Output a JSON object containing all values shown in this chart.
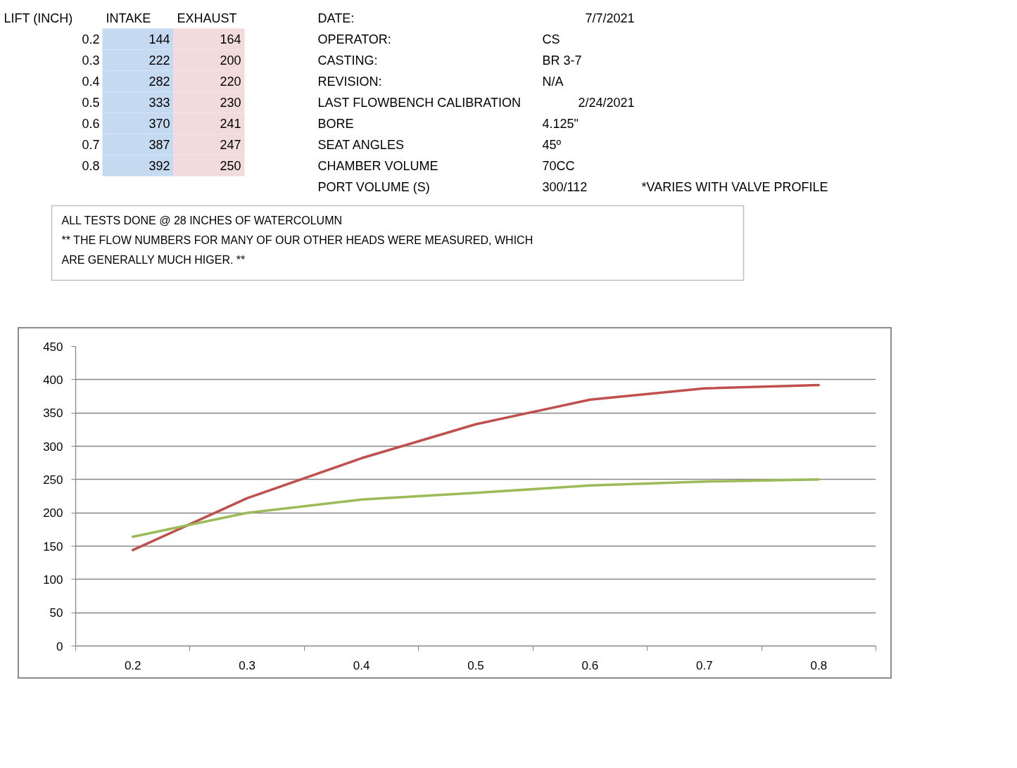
{
  "chart_data": [
    {
      "type": "heatmap",
      "ylabel": "LIFT (INCH)",
      "categories": [
        "INTAKE",
        "EXHAUST"
      ],
      "y_categories": [
        "0.2",
        "0.3",
        "0.4",
        "0.5",
        "0.6",
        "0.7",
        "0.8"
      ],
      "cells": [
        [
          144,
          164
        ],
        [
          222,
          200
        ],
        [
          282,
          220
        ],
        [
          333,
          230
        ],
        [
          370,
          241
        ],
        [
          387,
          247
        ],
        [
          392,
          250
        ]
      ],
      "data_labels": true,
      "annotations": [
        "DATE:",
        "7/7/2021",
        "OPERATOR:",
        "CS",
        "CASTING:",
        "BR 3-7",
        "REVISION:",
        "N/A",
        "LAST FLOWBENCH CALIBRATION",
        "2/24/2021",
        "BORE",
        "4.125\"",
        "SEAT ANGLES",
        "45º",
        "CHAMBER VOLUME",
        "70CC",
        "PORT VOLUME (S)",
        "300/112",
        "*VARIES WITH VALVE PROFILE",
        "ALL TESTS DONE @ 28 INCHES OF WATERCOLUMN",
        "** THE FLOW NUMBERS FOR MANY OF OUR OTHER HEADS WERE MEASURED, WHICH ARE GENERALLY MUCH HIGER. **"
      ]
    },
    {
      "type": "line",
      "categories": [
        "0.2",
        "0.3",
        "0.4",
        "0.5",
        "0.6",
        "0.7",
        "0.8"
      ],
      "series": [
        {
          "color": "#c0504d",
          "values": [
            144,
            222,
            282,
            333,
            370,
            387,
            392
          ]
        },
        {
          "color": "#9bbb59",
          "values": [
            164,
            200,
            220,
            230,
            241,
            247,
            250
          ]
        }
      ],
      "ylim": [
        0,
        450
      ],
      "yticks": [
        0,
        50,
        100,
        150,
        200,
        250,
        300,
        350,
        400,
        450
      ],
      "grid": "y"
    }
  ]
}
